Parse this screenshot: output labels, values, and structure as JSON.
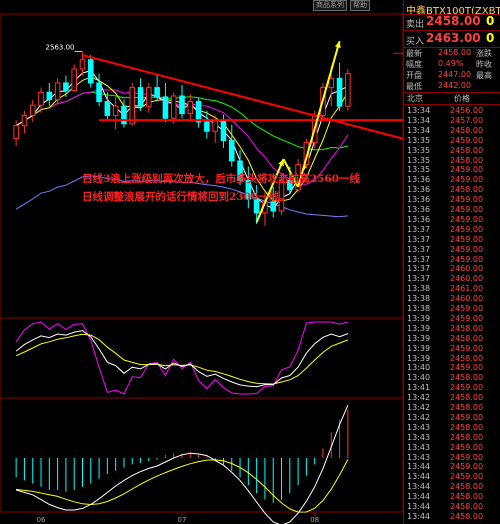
{
  "toolbar": {
    "btn1": "商品系列",
    "btn2": "帮助"
  },
  "annotation": {
    "line1": "日线3浪上涨级别再次放大，后市多头将攻击前高2560一线",
    "line2": "日线调整浪展开的话行情将回到2300一线。"
  },
  "quote": {
    "title": "中鑫BTX100T(ZXBTX)",
    "sell_label": "卖出",
    "sell_price": "2458.00",
    "sell_vol": "0",
    "buy_label": "买入",
    "buy_price": "2463.00",
    "buy_vol": "0",
    "rows": [
      {
        "l1": "最新",
        "v1": "2458.00",
        "l2": "涨跌",
        "v2": ""
      },
      {
        "l1": "幅度",
        "v1": "0.49%",
        "l2": "昨收",
        "v2": ""
      },
      {
        "l1": "开盘",
        "v1": "2447.00",
        "l2": "最高",
        "v2": ""
      },
      {
        "l1": "最低",
        "v1": "2442.00",
        "l2": "",
        "v2": ""
      }
    ],
    "tick_header_time": "北京",
    "tick_header_price": "价格",
    "ticks": [
      {
        "time": "13:34",
        "price": "2456.00"
      },
      {
        "time": "13:34",
        "price": "2457.00"
      },
      {
        "time": "13:34",
        "price": "2458.00"
      },
      {
        "time": "13:35",
        "price": "2459.00"
      },
      {
        "time": "13:35",
        "price": "2458.00"
      },
      {
        "time": "13:35",
        "price": "2458.00"
      },
      {
        "time": "13:35",
        "price": "2459.00"
      },
      {
        "time": "13:36",
        "price": "2459.00"
      },
      {
        "time": "13:36",
        "price": "2458.00"
      },
      {
        "time": "13:36",
        "price": "2459.00"
      },
      {
        "time": "13:36",
        "price": "2459.00"
      },
      {
        "time": "13:36",
        "price": "2459.00"
      },
      {
        "time": "13:37",
        "price": "2459.00"
      },
      {
        "time": "13:37",
        "price": "2459.00"
      },
      {
        "time": "13:37",
        "price": "2459.00"
      },
      {
        "time": "13:37",
        "price": "2459.00"
      },
      {
        "time": "13:37",
        "price": "2460.00"
      },
      {
        "time": "13:37",
        "price": "2460.00"
      },
      {
        "time": "13:38",
        "price": "2461.00"
      },
      {
        "time": "13:38",
        "price": "2460.00"
      },
      {
        "time": "13:38",
        "price": "2459.00"
      },
      {
        "time": "13:39",
        "price": "2459.00"
      },
      {
        "time": "13:39",
        "price": "2458.00"
      },
      {
        "time": "13:39",
        "price": "2458.00"
      },
      {
        "time": "13:39",
        "price": "2459.00"
      },
      {
        "time": "13:39",
        "price": "2458.00"
      },
      {
        "time": "13:40",
        "price": "2459.00"
      },
      {
        "time": "13:40",
        "price": "2458.00"
      },
      {
        "time": "13:41",
        "price": "2459.00"
      },
      {
        "time": "13:42",
        "price": "2458.00"
      },
      {
        "time": "13:42",
        "price": "2458.00"
      },
      {
        "time": "13:42",
        "price": "2459.00"
      },
      {
        "time": "13:43",
        "price": "2458.00"
      },
      {
        "time": "13:43",
        "price": "2458.00"
      },
      {
        "time": "13:43",
        "price": "2459.00"
      },
      {
        "time": "13:43",
        "price": "2459.00"
      },
      {
        "time": "13:44",
        "price": "2459.00"
      },
      {
        "time": "13:44",
        "price": "2459.00"
      },
      {
        "time": "13:44",
        "price": "2458.00"
      },
      {
        "time": "13:44",
        "price": "2458.00"
      },
      {
        "time": "13:44",
        "price": "2458.00"
      },
      {
        "time": "13:44",
        "price": "2458.00"
      }
    ]
  },
  "chart_data": {
    "type": "candlestick",
    "high_label": "2563.00",
    "x_tick_labels": [
      "06",
      "07",
      "08"
    ],
    "x_tick_index": [
      3,
      20,
      36
    ],
    "price_range": [
      2280,
      2600
    ],
    "colors": {
      "up": "#ff3030",
      "down": "#00ffff",
      "ma1": "#ffffff",
      "ma2": "#ffff00",
      "ma3": "#ff00ff",
      "ma4": "#00ff00",
      "ma5": "#7b7bff",
      "trend": "#ff0000",
      "wave": "#ffff00",
      "macd_up": "#ff3030",
      "macd_down": "#00ffff"
    },
    "candles": [
      {
        "o": 2470,
        "h": 2490,
        "l": 2462,
        "c": 2484
      },
      {
        "o": 2484,
        "h": 2500,
        "l": 2476,
        "c": 2495
      },
      {
        "o": 2495,
        "h": 2512,
        "l": 2488,
        "c": 2506
      },
      {
        "o": 2506,
        "h": 2525,
        "l": 2498,
        "c": 2520
      },
      {
        "o": 2520,
        "h": 2530,
        "l": 2505,
        "c": 2512
      },
      {
        "o": 2512,
        "h": 2535,
        "l": 2508,
        "c": 2530
      },
      {
        "o": 2530,
        "h": 2538,
        "l": 2515,
        "c": 2522
      },
      {
        "o": 2522,
        "h": 2550,
        "l": 2520,
        "c": 2545
      },
      {
        "o": 2545,
        "h": 2563,
        "l": 2538,
        "c": 2555
      },
      {
        "o": 2555,
        "h": 2560,
        "l": 2525,
        "c": 2530
      },
      {
        "o": 2530,
        "h": 2540,
        "l": 2505,
        "c": 2510
      },
      {
        "o": 2510,
        "h": 2520,
        "l": 2490,
        "c": 2495
      },
      {
        "o": 2495,
        "h": 2515,
        "l": 2480,
        "c": 2505
      },
      {
        "o": 2505,
        "h": 2512,
        "l": 2482,
        "c": 2486
      },
      {
        "o": 2486,
        "h": 2530,
        "l": 2484,
        "c": 2525
      },
      {
        "o": 2525,
        "h": 2535,
        "l": 2500,
        "c": 2505
      },
      {
        "o": 2505,
        "h": 2530,
        "l": 2498,
        "c": 2525
      },
      {
        "o": 2525,
        "h": 2540,
        "l": 2510,
        "c": 2515
      },
      {
        "o": 2515,
        "h": 2530,
        "l": 2488,
        "c": 2492
      },
      {
        "o": 2492,
        "h": 2520,
        "l": 2486,
        "c": 2516
      },
      {
        "o": 2516,
        "h": 2528,
        "l": 2492,
        "c": 2497
      },
      {
        "o": 2497,
        "h": 2518,
        "l": 2488,
        "c": 2510
      },
      {
        "o": 2510,
        "h": 2514,
        "l": 2482,
        "c": 2488
      },
      {
        "o": 2488,
        "h": 2500,
        "l": 2470,
        "c": 2478
      },
      {
        "o": 2478,
        "h": 2495,
        "l": 2465,
        "c": 2490
      },
      {
        "o": 2490,
        "h": 2496,
        "l": 2460,
        "c": 2468
      },
      {
        "o": 2468,
        "h": 2485,
        "l": 2440,
        "c": 2446
      },
      {
        "o": 2446,
        "h": 2458,
        "l": 2420,
        "c": 2425
      },
      {
        "o": 2425,
        "h": 2440,
        "l": 2395,
        "c": 2405
      },
      {
        "o": 2405,
        "h": 2420,
        "l": 2378,
        "c": 2390
      },
      {
        "o": 2390,
        "h": 2412,
        "l": 2376,
        "c": 2402
      },
      {
        "o": 2402,
        "h": 2418,
        "l": 2385,
        "c": 2392
      },
      {
        "o": 2392,
        "h": 2430,
        "l": 2388,
        "c": 2425
      },
      {
        "o": 2425,
        "h": 2440,
        "l": 2410,
        "c": 2415
      },
      {
        "o": 2415,
        "h": 2448,
        "l": 2412,
        "c": 2442
      },
      {
        "o": 2442,
        "h": 2470,
        "l": 2438,
        "c": 2466
      },
      {
        "o": 2466,
        "h": 2500,
        "l": 2460,
        "c": 2495
      },
      {
        "o": 2495,
        "h": 2530,
        "l": 2490,
        "c": 2525
      },
      {
        "o": 2525,
        "h": 2548,
        "l": 2505,
        "c": 2535
      },
      {
        "o": 2535,
        "h": 2552,
        "l": 2500,
        "c": 2505
      },
      {
        "o": 2505,
        "h": 2545,
        "l": 2500,
        "c": 2540
      }
    ],
    "macd": [
      -12,
      -14,
      -16,
      -18,
      -20,
      -20,
      -21,
      -20,
      -18,
      -16,
      -13,
      -10,
      -8,
      -6,
      -4,
      -3,
      -2,
      -1,
      2,
      3,
      3,
      4,
      2,
      1,
      -2,
      -4,
      -8,
      -12,
      -17,
      -22,
      -26,
      -28,
      -26,
      -22,
      -17,
      -11,
      -4,
      6,
      16,
      24,
      30
    ]
  }
}
